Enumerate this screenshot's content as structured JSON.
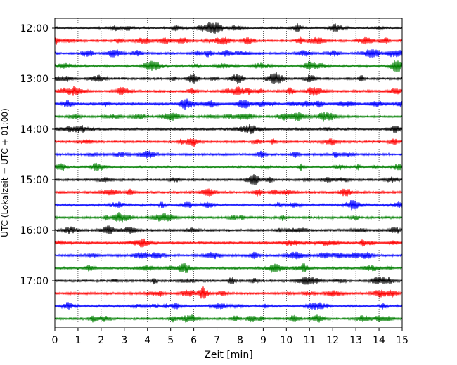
{
  "chart_data": {
    "type": "line",
    "title": "",
    "xlabel": "Zeit  [min]",
    "ylabel": "UTC (Lokalzeit = UTC + 01:00)",
    "xlim": [
      0,
      15
    ],
    "x_ticks": [
      0,
      1,
      2,
      3,
      4,
      5,
      6,
      7,
      8,
      9,
      10,
      11,
      12,
      13,
      14,
      15
    ],
    "x_tick_labels": [
      "0",
      "1",
      "2",
      "3",
      "4",
      "5",
      "6",
      "7",
      "8",
      "9",
      "10",
      "11",
      "12",
      "13",
      "14",
      "15"
    ],
    "y_tick_labels": [
      "12:00",
      "13:00",
      "14:00",
      "15:00",
      "16:00",
      "17:00"
    ],
    "grid": "vertical dotted lines at each minute",
    "legend": "none",
    "trace_start_times": [
      "12:00",
      "12:15",
      "12:30",
      "12:45",
      "13:00",
      "13:15",
      "13:30",
      "13:45",
      "14:00",
      "14:15",
      "14:30",
      "14:45",
      "15:00",
      "15:15",
      "15:30",
      "15:45",
      "16:00",
      "16:15",
      "16:30",
      "16:45",
      "17:00",
      "17:15",
      "17:30",
      "17:45"
    ],
    "trace_color_cycle": [
      "#000000",
      "#ff0000",
      "#0000ff",
      "#007f00"
    ]
  }
}
